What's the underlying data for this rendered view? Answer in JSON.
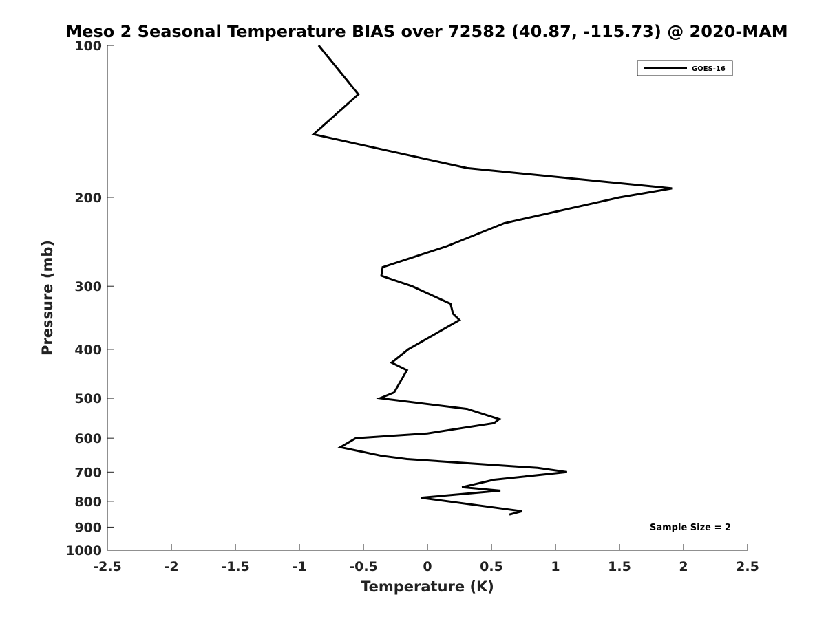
{
  "chart_data": {
    "type": "line",
    "title": "Meso 2 Seasonal Temperature BIAS over 72582 (40.87, -115.73) @ 2020-MAM",
    "xlabel": "Temperature (K)",
    "ylabel": "Pressure (mb)",
    "xlim": [
      -2.5,
      2.5
    ],
    "ylim": [
      100,
      1000
    ],
    "y_scale": "log",
    "y_reversed": true,
    "grid": false,
    "x_ticks": [
      -2.5,
      -2,
      -1.5,
      -1,
      -0.5,
      0,
      0.5,
      1,
      1.5,
      2,
      2.5
    ],
    "x_tick_labels": [
      "-2.5",
      "-2",
      "-1.5",
      "-1",
      "-0.5",
      "0",
      "0.5",
      "1",
      "1.5",
      "2",
      "2.5"
    ],
    "y_ticks": [
      100,
      200,
      300,
      400,
      500,
      600,
      700,
      800,
      900,
      1000
    ],
    "y_tick_labels": [
      "100",
      "200",
      "300",
      "400",
      "500",
      "600",
      "700",
      "800",
      "900",
      "1000"
    ],
    "legend_position": "top-right",
    "annotation": "Sample Size = 2",
    "series": [
      {
        "name": "GOES-16",
        "color": "#000000",
        "points": [
          {
            "x": -0.85,
            "y": 100
          },
          {
            "x": -0.54,
            "y": 125
          },
          {
            "x": -0.89,
            "y": 150
          },
          {
            "x": 0.31,
            "y": 175
          },
          {
            "x": 1.91,
            "y": 192
          },
          {
            "x": 1.5,
            "y": 200
          },
          {
            "x": 0.6,
            "y": 225
          },
          {
            "x": 0.15,
            "y": 250
          },
          {
            "x": -0.35,
            "y": 275
          },
          {
            "x": -0.36,
            "y": 286
          },
          {
            "x": -0.12,
            "y": 300
          },
          {
            "x": 0.18,
            "y": 325
          },
          {
            "x": 0.2,
            "y": 340
          },
          {
            "x": 0.25,
            "y": 350
          },
          {
            "x": -0.15,
            "y": 400
          },
          {
            "x": -0.28,
            "y": 425
          },
          {
            "x": -0.16,
            "y": 440
          },
          {
            "x": -0.26,
            "y": 487
          },
          {
            "x": -0.37,
            "y": 500
          },
          {
            "x": 0.31,
            "y": 525
          },
          {
            "x": 0.56,
            "y": 550
          },
          {
            "x": 0.52,
            "y": 560
          },
          {
            "x": 0.0,
            "y": 587
          },
          {
            "x": -0.56,
            "y": 600
          },
          {
            "x": -0.68,
            "y": 625
          },
          {
            "x": -0.36,
            "y": 650
          },
          {
            "x": -0.16,
            "y": 660
          },
          {
            "x": 0.86,
            "y": 687
          },
          {
            "x": 1.09,
            "y": 700
          },
          {
            "x": 0.52,
            "y": 725
          },
          {
            "x": 0.27,
            "y": 750
          },
          {
            "x": 0.57,
            "y": 762
          },
          {
            "x": -0.05,
            "y": 787
          },
          {
            "x": 0.74,
            "y": 837
          },
          {
            "x": 0.64,
            "y": 850
          }
        ]
      }
    ]
  }
}
